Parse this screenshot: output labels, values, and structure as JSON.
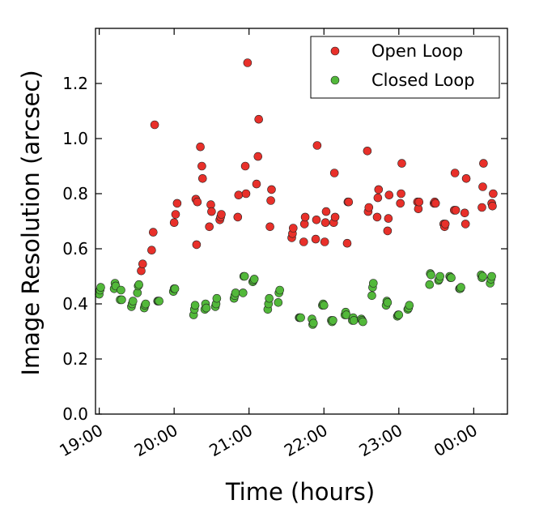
{
  "chart_data": {
    "type": "scatter",
    "title": "",
    "xlabel": "Time (hours)",
    "ylabel": "Image Resolution (arcsec)",
    "xlim": [
      -0.05,
      5.45
    ],
    "ylim": [
      0.0,
      1.4
    ],
    "xticks": [
      {
        "value": 0,
        "label": "19:00"
      },
      {
        "value": 1,
        "label": "20:00"
      },
      {
        "value": 2,
        "label": "21:00"
      },
      {
        "value": 3,
        "label": "22:00"
      },
      {
        "value": 4,
        "label": "23:00"
      },
      {
        "value": 5,
        "label": "00:00"
      }
    ],
    "yticks": [
      {
        "value": 0.0,
        "label": "0.0"
      },
      {
        "value": 0.2,
        "label": "0.2"
      },
      {
        "value": 0.4,
        "label": "0.4"
      },
      {
        "value": 0.6,
        "label": "0.6"
      },
      {
        "value": 0.8,
        "label": "0.8"
      },
      {
        "value": 1.0,
        "label": "1.0"
      },
      {
        "value": 1.2,
        "label": "1.2"
      }
    ],
    "grid": false,
    "legend": {
      "position": "top-right"
    },
    "series": [
      {
        "name": "Open Loop",
        "color": "#e8302a",
        "x": [
          0.56,
          0.58,
          0.7,
          0.72,
          0.74,
          1.0,
          1.02,
          1.04,
          1.29,
          1.3,
          1.31,
          1.35,
          1.37,
          1.38,
          1.47,
          1.49,
          1.5,
          1.61,
          1.62,
          1.63,
          1.85,
          1.86,
          1.95,
          1.96,
          1.98,
          2.1,
          2.12,
          2.13,
          2.28,
          2.29,
          2.3,
          2.57,
          2.58,
          2.59,
          2.73,
          2.74,
          2.75,
          2.89,
          2.9,
          2.91,
          3.01,
          3.02,
          3.03,
          3.13,
          3.14,
          3.15,
          3.31,
          3.32,
          3.33,
          3.58,
          3.59,
          3.6,
          3.71,
          3.72,
          3.73,
          3.85,
          3.86,
          3.87,
          4.02,
          4.03,
          4.04,
          4.25,
          4.26,
          4.27,
          4.47,
          4.48,
          4.49,
          4.6,
          4.61,
          4.62,
          4.74,
          4.75,
          4.76,
          4.88,
          4.89,
          4.9,
          5.11,
          5.12,
          5.13,
          5.24,
          5.25,
          5.26
        ],
        "y": [
          0.52,
          0.545,
          0.595,
          0.66,
          1.05,
          0.695,
          0.725,
          0.765,
          0.78,
          0.615,
          0.77,
          0.97,
          0.9,
          0.855,
          0.68,
          0.76,
          0.735,
          0.705,
          0.715,
          0.725,
          0.715,
          0.795,
          0.9,
          0.8,
          1.275,
          0.835,
          0.935,
          1.07,
          0.68,
          0.775,
          0.815,
          0.64,
          0.655,
          0.675,
          0.625,
          0.69,
          0.715,
          0.635,
          0.705,
          0.975,
          0.625,
          0.695,
          0.735,
          0.695,
          0.875,
          0.715,
          0.62,
          0.77,
          0.77,
          0.955,
          0.735,
          0.75,
          0.715,
          0.785,
          0.815,
          0.665,
          0.71,
          0.795,
          0.765,
          0.8,
          0.91,
          0.77,
          0.745,
          0.77,
          0.765,
          0.77,
          0.765,
          0.69,
          0.68,
          0.69,
          0.74,
          0.875,
          0.74,
          0.73,
          0.69,
          0.855,
          0.75,
          0.825,
          0.91,
          0.765,
          0.755,
          0.8
        ]
      },
      {
        "name": "Closed Loop",
        "color": "#52b83a",
        "x": [
          0.0,
          0.01,
          0.02,
          0.2,
          0.21,
          0.22,
          0.28,
          0.29,
          0.3,
          0.43,
          0.44,
          0.45,
          0.51,
          0.52,
          0.53,
          0.6,
          0.61,
          0.62,
          0.78,
          0.79,
          0.8,
          0.99,
          1.0,
          1.01,
          1.26,
          1.27,
          1.28,
          1.41,
          1.42,
          1.43,
          1.55,
          1.56,
          1.57,
          1.8,
          1.81,
          1.82,
          1.92,
          1.93,
          1.94,
          2.05,
          2.06,
          2.07,
          2.25,
          2.26,
          2.27,
          2.39,
          2.4,
          2.41,
          2.67,
          2.68,
          2.69,
          2.84,
          2.85,
          2.86,
          2.98,
          2.99,
          3.0,
          3.1,
          3.11,
          3.12,
          3.28,
          3.29,
          3.3,
          3.38,
          3.39,
          3.4,
          3.5,
          3.51,
          3.52,
          3.64,
          3.65,
          3.66,
          3.83,
          3.84,
          3.85,
          3.98,
          3.99,
          4.0,
          4.12,
          4.13,
          4.14,
          4.41,
          4.42,
          4.43,
          4.53,
          4.54,
          4.55,
          4.68,
          4.69,
          4.7,
          4.81,
          4.82,
          4.83,
          5.1,
          5.11,
          5.12,
          5.22,
          5.23,
          5.24
        ],
        "y": [
          0.435,
          0.45,
          0.46,
          0.455,
          0.475,
          0.465,
          0.415,
          0.45,
          0.415,
          0.39,
          0.4,
          0.41,
          0.44,
          0.465,
          0.47,
          0.385,
          0.395,
          0.4,
          0.41,
          0.41,
          0.41,
          0.445,
          0.455,
          0.455,
          0.36,
          0.38,
          0.395,
          0.38,
          0.4,
          0.385,
          0.39,
          0.4,
          0.42,
          0.42,
          0.43,
          0.44,
          0.44,
          0.5,
          0.5,
          0.48,
          0.485,
          0.49,
          0.38,
          0.4,
          0.42,
          0.405,
          0.44,
          0.45,
          0.35,
          0.35,
          0.35,
          0.345,
          0.325,
          0.33,
          0.395,
          0.4,
          0.395,
          0.34,
          0.335,
          0.34,
          0.36,
          0.37,
          0.36,
          0.34,
          0.35,
          0.34,
          0.345,
          0.34,
          0.335,
          0.43,
          0.46,
          0.475,
          0.395,
          0.41,
          0.405,
          0.355,
          0.36,
          0.36,
          0.38,
          0.385,
          0.395,
          0.47,
          0.51,
          0.505,
          0.485,
          0.49,
          0.5,
          0.5,
          0.495,
          0.495,
          0.455,
          0.455,
          0.46,
          0.505,
          0.495,
          0.5,
          0.475,
          0.49,
          0.5
        ]
      }
    ]
  }
}
